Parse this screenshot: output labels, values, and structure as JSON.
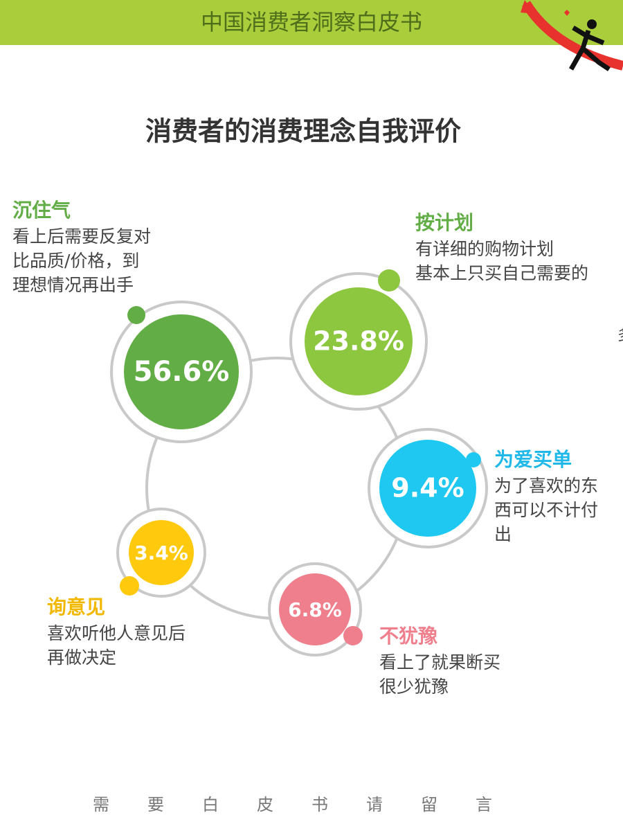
{
  "header": {
    "title": "中国消费者洞察白皮书"
  },
  "title": "消费者的消费理念自我评价",
  "groups": [
    {
      "value": "56.6%",
      "label": "沉住气",
      "desc": [
        "看上后需要反复对",
        "比品质/价格，到",
        "理想情况再出手"
      ]
    },
    {
      "value": "23.8%",
      "label": "按计划",
      "desc": [
        "有详细的购物计划",
        "基本上只买自己需要的"
      ]
    },
    {
      "value": "9.4%",
      "label": "为爱买单",
      "desc": [
        "为了喜欢的东",
        "西可以不计付",
        "出"
      ]
    },
    {
      "value": "6.8%",
      "label": "不犹豫",
      "desc": [
        "看上了就果断买",
        "很少犹豫"
      ]
    },
    {
      "value": "3.4%",
      "label": "询意见",
      "desc": [
        "喜欢听他人意见后",
        "再做决定"
      ]
    }
  ],
  "edge_text": "多",
  "footer": "需要白皮书请留言"
}
